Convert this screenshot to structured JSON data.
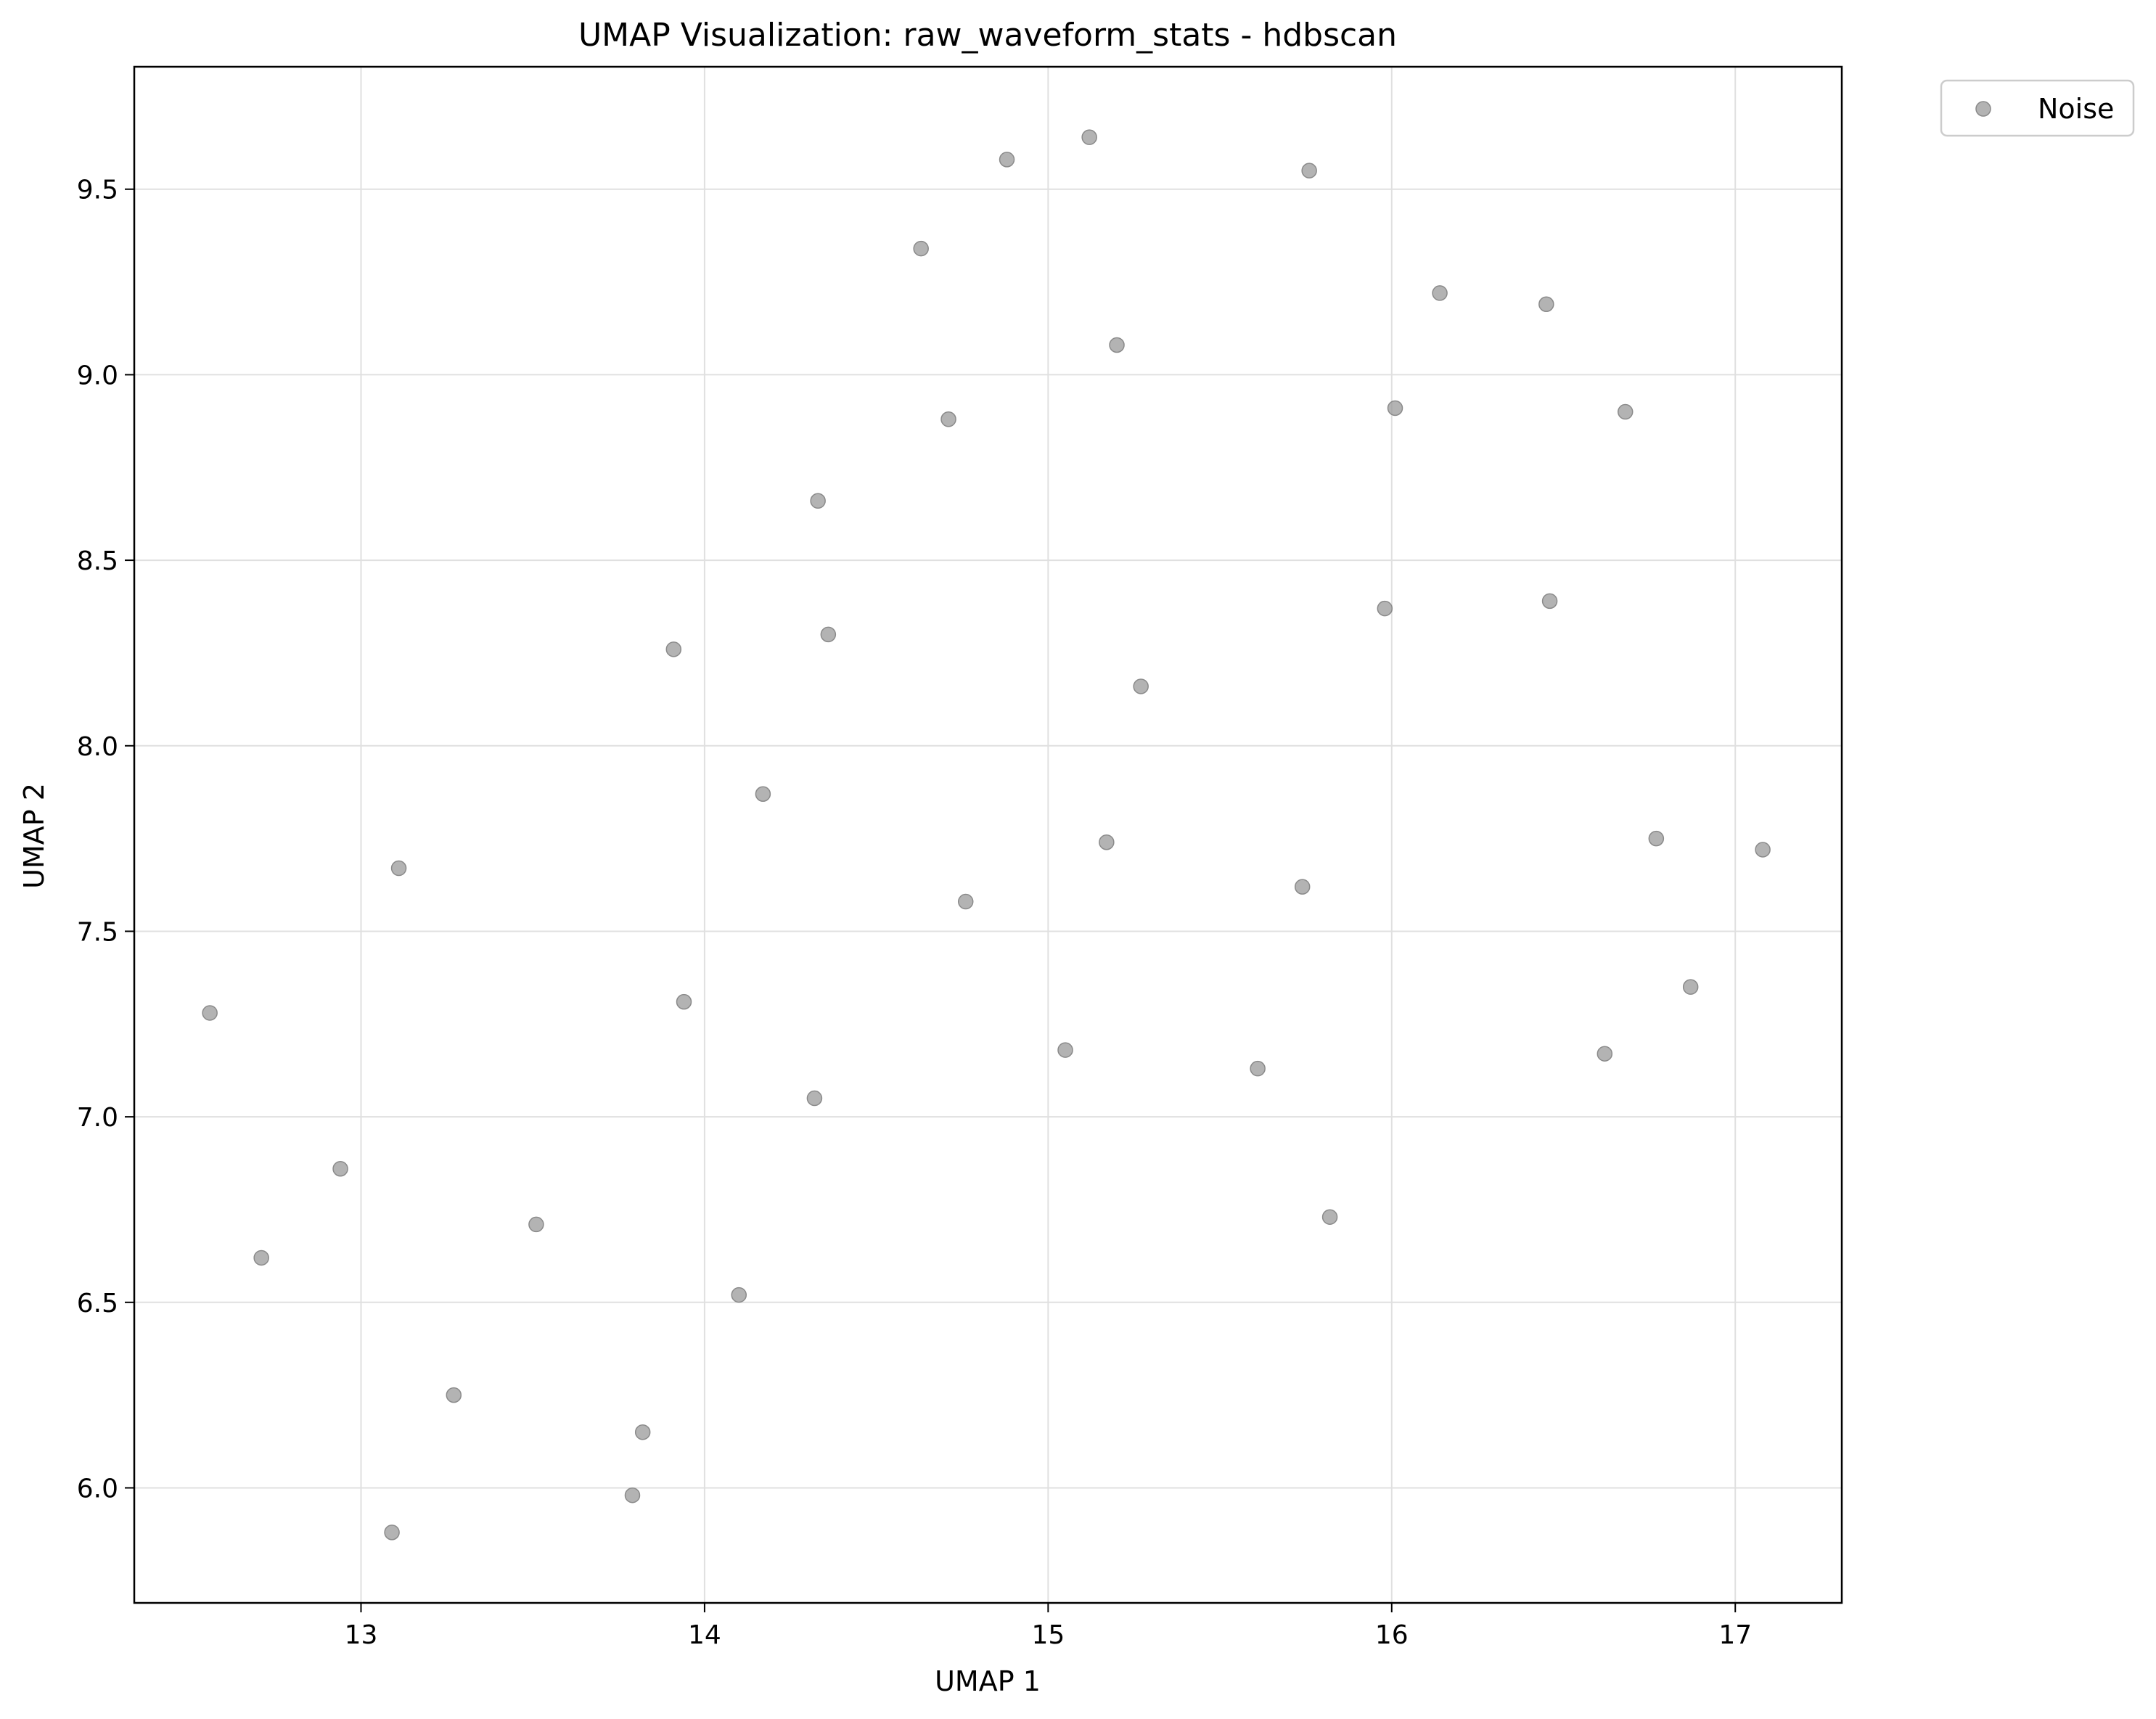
{
  "chart_data": {
    "type": "scatter",
    "title": "UMAP Visualization: raw_waveform_stats - hdbscan",
    "xlabel": "UMAP 1",
    "ylabel": "UMAP 2",
    "xlim": [
      12.34,
      17.31
    ],
    "ylim": [
      5.69,
      9.83
    ],
    "xticks": [
      13,
      14,
      15,
      16,
      17
    ],
    "xtick_labels": [
      "13",
      "14",
      "15",
      "16",
      "17"
    ],
    "yticks": [
      6.0,
      6.5,
      7.0,
      7.5,
      8.0,
      8.5,
      9.0,
      9.5
    ],
    "ytick_labels": [
      "6.0",
      "6.5",
      "7.0",
      "7.5",
      "8.0",
      "8.5",
      "9.0",
      "9.5"
    ],
    "grid": true,
    "legend": {
      "position": "outside-top-right",
      "entries": [
        "Noise"
      ]
    },
    "colors": {
      "noise": "#999999",
      "grid": "#e0e0e0",
      "axis": "#000000"
    },
    "series": [
      {
        "name": "Noise",
        "points": [
          [
            15.12,
            9.64
          ],
          [
            14.88,
            9.58
          ],
          [
            15.76,
            9.55
          ],
          [
            14.63,
            9.34
          ],
          [
            16.14,
            9.22
          ],
          [
            16.45,
            9.19
          ],
          [
            15.2,
            9.08
          ],
          [
            16.01,
            8.91
          ],
          [
            16.68,
            8.9
          ],
          [
            14.71,
            8.88
          ],
          [
            14.33,
            8.66
          ],
          [
            16.46,
            8.39
          ],
          [
            15.98,
            8.37
          ],
          [
            14.36,
            8.3
          ],
          [
            13.91,
            8.26
          ],
          [
            15.27,
            8.16
          ],
          [
            14.17,
            7.87
          ],
          [
            16.77,
            7.75
          ],
          [
            15.17,
            7.74
          ],
          [
            17.08,
            7.72
          ],
          [
            13.11,
            7.67
          ],
          [
            15.74,
            7.62
          ],
          [
            14.76,
            7.58
          ],
          [
            16.87,
            7.35
          ],
          [
            13.94,
            7.31
          ],
          [
            12.56,
            7.28
          ],
          [
            15.05,
            7.18
          ],
          [
            16.62,
            7.17
          ],
          [
            15.61,
            7.13
          ],
          [
            14.32,
            7.05
          ],
          [
            12.94,
            6.86
          ],
          [
            15.82,
            6.73
          ],
          [
            13.51,
            6.71
          ],
          [
            12.71,
            6.62
          ],
          [
            14.1,
            6.52
          ],
          [
            13.27,
            6.25
          ],
          [
            13.82,
            6.15
          ],
          [
            13.79,
            5.98
          ],
          [
            13.09,
            5.88
          ]
        ]
      }
    ]
  }
}
